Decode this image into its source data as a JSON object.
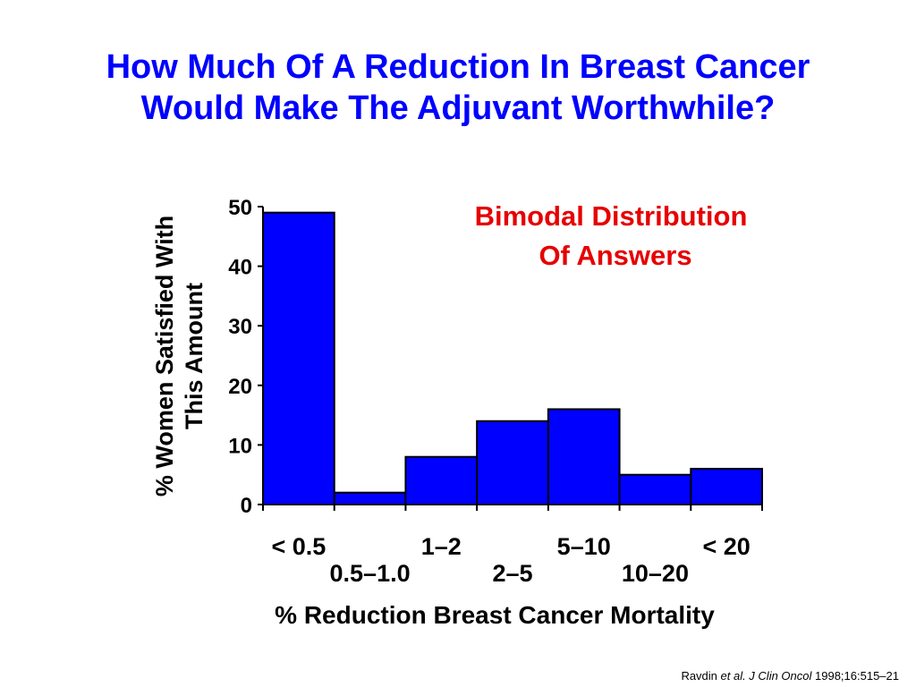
{
  "slide": {
    "title_line1": "How Much Of A Reduction In Breast Cancer",
    "title_line2": "Would Make The Adjuvant Worthwhile?",
    "citation": {
      "author": "Ravdin ",
      "etal": "et al. J Clin Oncol",
      "ref": " 1998;16:515–21"
    }
  },
  "chart_data": {
    "type": "bar",
    "categories": [
      "< 0.5",
      "0.5–1.0",
      "1–2",
      "2–5",
      "5–10",
      "10–20",
      "< 20"
    ],
    "values": [
      49,
      2,
      8,
      14,
      16,
      5,
      6
    ],
    "ylim": [
      0,
      50
    ],
    "yticks": [
      0,
      10,
      20,
      30,
      40,
      50
    ],
    "ylabel_line1": "% Women Satisfied With",
    "ylabel_line2": "This Amount",
    "xlabel": "% Reduction Breast Cancer Mortality",
    "annotation_line1": "Bimodal Distribution",
    "annotation_line2": "Of Answers",
    "bar_color": "#0000ff",
    "annotation_color": "#e60000",
    "title_color": "#0000ff",
    "grid": false,
    "legend": "none"
  }
}
